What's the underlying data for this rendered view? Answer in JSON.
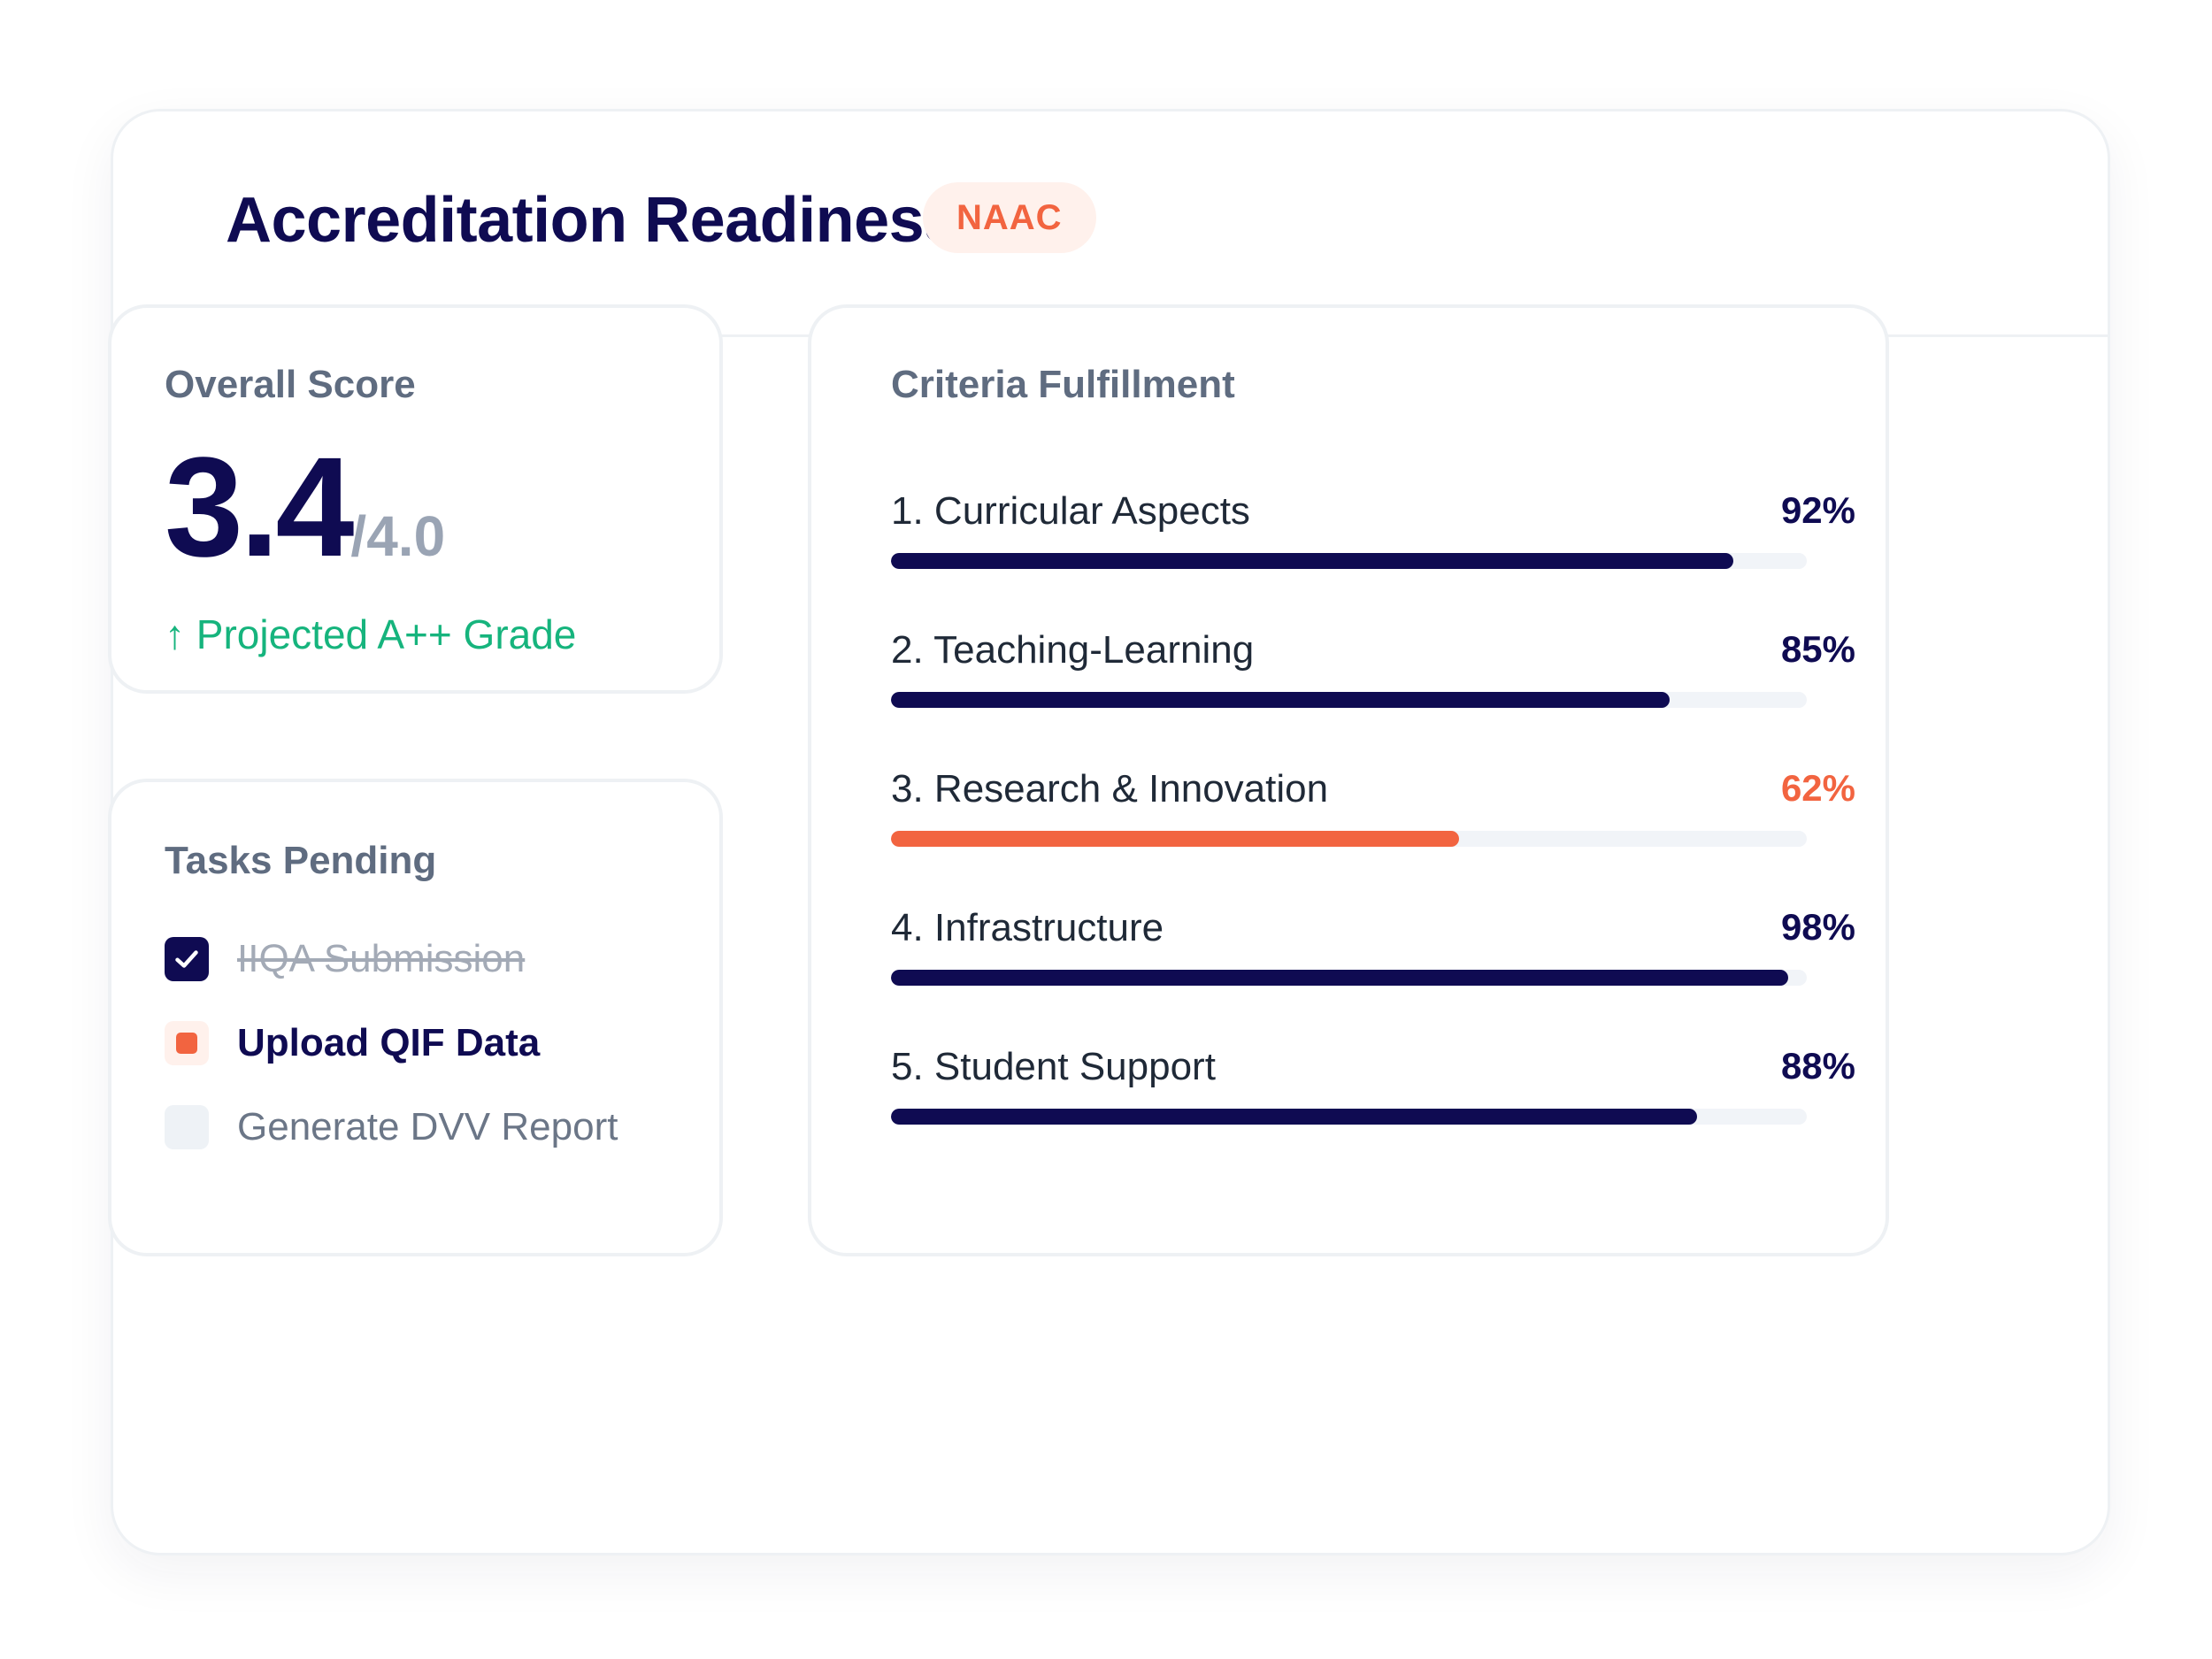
{
  "header": {
    "title": "Accreditation Readiness",
    "badge": "NAAC"
  },
  "score": {
    "title": "Overall Score",
    "value": "3.4",
    "max": "/4.0",
    "projection": "↑ Projected A++ Grade"
  },
  "tasks": {
    "title": "Tasks Pending",
    "items": [
      {
        "label": "IIQA Submission",
        "status": "done"
      },
      {
        "label": "Upload QIF Data",
        "status": "in-progress"
      },
      {
        "label": "Generate DVV Report",
        "status": "todo"
      }
    ]
  },
  "criteria": {
    "title": "Criteria Fulfillment",
    "items": [
      {
        "label": "1. Curricular Aspects",
        "percent_label": "92%",
        "value": 92,
        "color": "#0f0b52"
      },
      {
        "label": "2. Teaching-Learning",
        "percent_label": "85%",
        "value": 85,
        "color": "#0f0b52"
      },
      {
        "label": "3. Research & Innovation",
        "percent_label": "62%",
        "value": 62,
        "color": "#f26440"
      },
      {
        "label": "4. Infrastructure",
        "percent_label": "98%",
        "value": 98,
        "color": "#0f0b52"
      },
      {
        "label": "5. Student Support",
        "percent_label": "88%",
        "value": 88,
        "color": "#0f0b52"
      }
    ]
  }
}
